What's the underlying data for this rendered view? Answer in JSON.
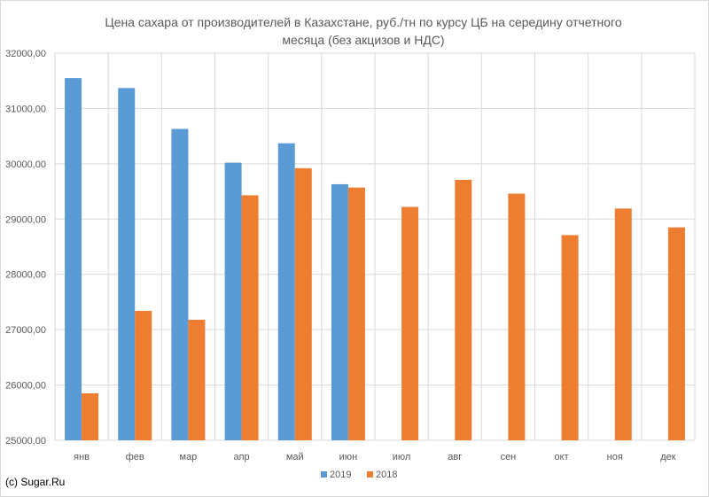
{
  "chart_data": {
    "type": "bar",
    "title_line1": "Цена сахара от производителей в Казахстане, руб./тн по курсу ЦБ на середину отчетного",
    "title_line2": "месяца (без акцизов и НДС)",
    "categories": [
      "янв",
      "фев",
      "мар",
      "апр",
      "май",
      "июн",
      "июл",
      "авг",
      "сен",
      "окт",
      "ноя",
      "дек"
    ],
    "series": [
      {
        "name": "2019",
        "color": "#5b9bd5",
        "values": [
          31550,
          31370,
          30630,
          30020,
          30370,
          29630,
          null,
          null,
          null,
          null,
          null,
          null
        ]
      },
      {
        "name": "2018",
        "color": "#ed7d31",
        "values": [
          25850,
          27340,
          27180,
          29430,
          29920,
          29570,
          29220,
          29710,
          29460,
          28710,
          29190,
          28850
        ]
      }
    ],
    "ylim": [
      25000,
      32000
    ],
    "yticks": [
      "25000,00",
      "26000,00",
      "27000,00",
      "28000,00",
      "29000,00",
      "30000,00",
      "31000,00",
      "32000,00"
    ],
    "grid": true,
    "legend": "bottom"
  },
  "footer": {
    "copyright": "(c) Sugar.Ru"
  }
}
